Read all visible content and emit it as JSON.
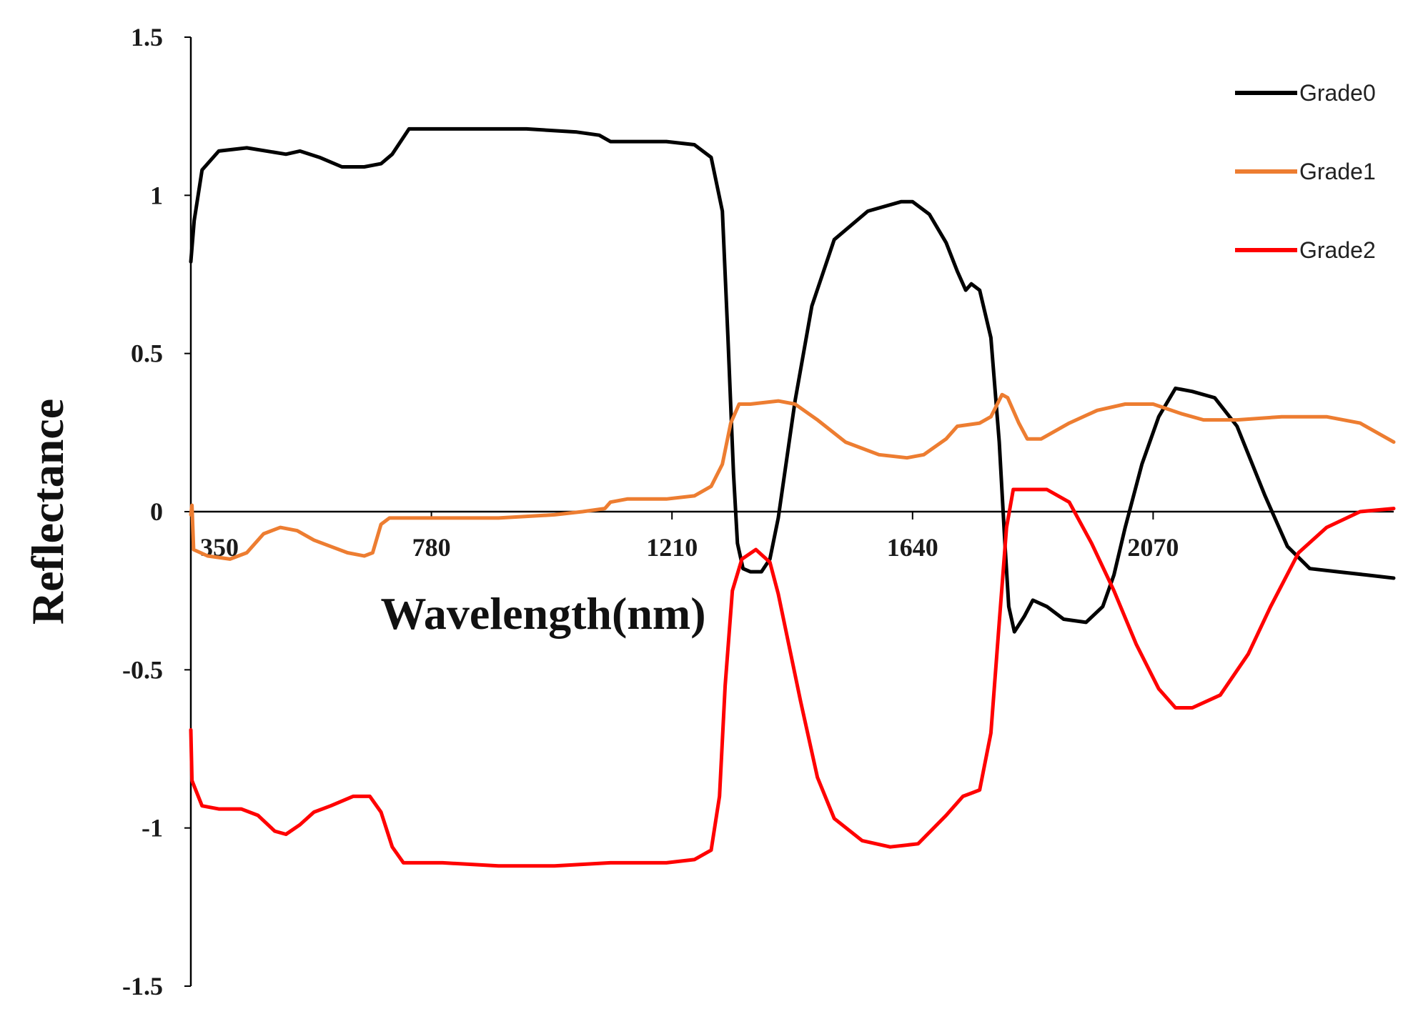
{
  "chart_data": {
    "type": "line",
    "xlabel": "Wavelength(nm)",
    "ylabel": "Reflectance",
    "xlim": [
      350,
      2500
    ],
    "ylim": [
      -1.5,
      1.5
    ],
    "xticks": [
      "350",
      "780",
      "1210",
      "1640",
      "2070"
    ],
    "xtick_values": [
      350,
      780,
      1210,
      1640,
      2070
    ],
    "yticks": [
      "1.5",
      "1",
      "0.5",
      "0",
      "-0.5",
      "-1",
      "-1.5"
    ],
    "ytick_values": [
      1.5,
      1,
      0.5,
      0,
      -0.5,
      -1,
      -1.5
    ],
    "legend_position": "top-right",
    "grid": false,
    "series": [
      {
        "name": "Grade0",
        "color": "#000000",
        "points": [
          [
            350,
            0.79
          ],
          [
            356,
            0.92
          ],
          [
            370,
            1.08
          ],
          [
            400,
            1.14
          ],
          [
            450,
            1.15
          ],
          [
            520,
            1.13
          ],
          [
            545,
            1.14
          ],
          [
            580,
            1.12
          ],
          [
            620,
            1.09
          ],
          [
            660,
            1.09
          ],
          [
            690,
            1.1
          ],
          [
            710,
            1.13
          ],
          [
            740,
            1.21
          ],
          [
            780,
            1.21
          ],
          [
            850,
            1.21
          ],
          [
            950,
            1.21
          ],
          [
            1040,
            1.2
          ],
          [
            1080,
            1.19
          ],
          [
            1100,
            1.17
          ],
          [
            1200,
            1.17
          ],
          [
            1250,
            1.16
          ],
          [
            1280,
            1.12
          ],
          [
            1300,
            0.95
          ],
          [
            1310,
            0.55
          ],
          [
            1320,
            0.12
          ],
          [
            1327,
            -0.1
          ],
          [
            1337,
            -0.18
          ],
          [
            1350,
            -0.19
          ],
          [
            1370,
            -0.19
          ],
          [
            1385,
            -0.15
          ],
          [
            1400,
            -0.02
          ],
          [
            1430,
            0.35
          ],
          [
            1460,
            0.65
          ],
          [
            1500,
            0.86
          ],
          [
            1560,
            0.95
          ],
          [
            1620,
            0.98
          ],
          [
            1640,
            0.98
          ],
          [
            1670,
            0.94
          ],
          [
            1700,
            0.85
          ],
          [
            1720,
            0.76
          ],
          [
            1735,
            0.7
          ],
          [
            1745,
            0.72
          ],
          [
            1760,
            0.7
          ],
          [
            1780,
            0.55
          ],
          [
            1795,
            0.22
          ],
          [
            1805,
            -0.1
          ],
          [
            1812,
            -0.3
          ],
          [
            1822,
            -0.38
          ],
          [
            1840,
            -0.33
          ],
          [
            1855,
            -0.28
          ],
          [
            1880,
            -0.3
          ],
          [
            1910,
            -0.34
          ],
          [
            1950,
            -0.35
          ],
          [
            1980,
            -0.3
          ],
          [
            2000,
            -0.2
          ],
          [
            2020,
            -0.05
          ],
          [
            2050,
            0.15
          ],
          [
            2080,
            0.3
          ],
          [
            2110,
            0.39
          ],
          [
            2140,
            0.38
          ],
          [
            2180,
            0.36
          ],
          [
            2220,
            0.27
          ],
          [
            2270,
            0.05
          ],
          [
            2310,
            -0.11
          ],
          [
            2350,
            -0.18
          ],
          [
            2400,
            -0.19
          ],
          [
            2450,
            -0.2
          ],
          [
            2500,
            -0.21
          ]
        ]
      },
      {
        "name": "Grade1",
        "color": "#ED7D31",
        "points": [
          [
            350,
            -0.01
          ],
          [
            352,
            0.02
          ],
          [
            355,
            -0.12
          ],
          [
            380,
            -0.14
          ],
          [
            420,
            -0.15
          ],
          [
            450,
            -0.13
          ],
          [
            480,
            -0.07
          ],
          [
            510,
            -0.05
          ],
          [
            540,
            -0.06
          ],
          [
            570,
            -0.09
          ],
          [
            600,
            -0.11
          ],
          [
            630,
            -0.13
          ],
          [
            660,
            -0.14
          ],
          [
            675,
            -0.13
          ],
          [
            690,
            -0.04
          ],
          [
            705,
            -0.02
          ],
          [
            740,
            -0.02
          ],
          [
            800,
            -0.02
          ],
          [
            900,
            -0.02
          ],
          [
            1000,
            -0.01
          ],
          [
            1050,
            0.0
          ],
          [
            1090,
            0.01
          ],
          [
            1100,
            0.03
          ],
          [
            1130,
            0.04
          ],
          [
            1200,
            0.04
          ],
          [
            1250,
            0.05
          ],
          [
            1280,
            0.08
          ],
          [
            1300,
            0.15
          ],
          [
            1315,
            0.28
          ],
          [
            1330,
            0.34
          ],
          [
            1350,
            0.34
          ],
          [
            1400,
            0.35
          ],
          [
            1430,
            0.34
          ],
          [
            1470,
            0.29
          ],
          [
            1520,
            0.22
          ],
          [
            1580,
            0.18
          ],
          [
            1630,
            0.17
          ],
          [
            1660,
            0.18
          ],
          [
            1700,
            0.23
          ],
          [
            1720,
            0.27
          ],
          [
            1760,
            0.28
          ],
          [
            1780,
            0.3
          ],
          [
            1800,
            0.37
          ],
          [
            1810,
            0.36
          ],
          [
            1830,
            0.28
          ],
          [
            1845,
            0.23
          ],
          [
            1870,
            0.23
          ],
          [
            1920,
            0.28
          ],
          [
            1970,
            0.32
          ],
          [
            2020,
            0.34
          ],
          [
            2070,
            0.34
          ],
          [
            2120,
            0.31
          ],
          [
            2160,
            0.29
          ],
          [
            2220,
            0.29
          ],
          [
            2300,
            0.3
          ],
          [
            2380,
            0.3
          ],
          [
            2440,
            0.28
          ],
          [
            2500,
            0.22
          ]
        ]
      },
      {
        "name": "Grade2",
        "color": "#FF0000",
        "points": [
          [
            350,
            -0.69
          ],
          [
            352,
            -0.85
          ],
          [
            370,
            -0.93
          ],
          [
            400,
            -0.94
          ],
          [
            440,
            -0.94
          ],
          [
            470,
            -0.96
          ],
          [
            500,
            -1.01
          ],
          [
            520,
            -1.02
          ],
          [
            545,
            -0.99
          ],
          [
            570,
            -0.95
          ],
          [
            600,
            -0.93
          ],
          [
            640,
            -0.9
          ],
          [
            670,
            -0.9
          ],
          [
            690,
            -0.95
          ],
          [
            710,
            -1.06
          ],
          [
            730,
            -1.11
          ],
          [
            800,
            -1.11
          ],
          [
            900,
            -1.12
          ],
          [
            1000,
            -1.12
          ],
          [
            1100,
            -1.11
          ],
          [
            1200,
            -1.11
          ],
          [
            1250,
            -1.1
          ],
          [
            1280,
            -1.07
          ],
          [
            1295,
            -0.9
          ],
          [
            1305,
            -0.55
          ],
          [
            1318,
            -0.25
          ],
          [
            1335,
            -0.15
          ],
          [
            1360,
            -0.12
          ],
          [
            1385,
            -0.16
          ],
          [
            1400,
            -0.26
          ],
          [
            1440,
            -0.6
          ],
          [
            1470,
            -0.84
          ],
          [
            1500,
            -0.97
          ],
          [
            1550,
            -1.04
          ],
          [
            1600,
            -1.06
          ],
          [
            1650,
            -1.05
          ],
          [
            1700,
            -0.96
          ],
          [
            1730,
            -0.9
          ],
          [
            1745,
            -0.89
          ],
          [
            1760,
            -0.88
          ],
          [
            1780,
            -0.7
          ],
          [
            1795,
            -0.35
          ],
          [
            1808,
            -0.05
          ],
          [
            1820,
            0.07
          ],
          [
            1840,
            0.07
          ],
          [
            1880,
            0.07
          ],
          [
            1920,
            0.03
          ],
          [
            1960,
            -0.1
          ],
          [
            2000,
            -0.25
          ],
          [
            2040,
            -0.42
          ],
          [
            2080,
            -0.56
          ],
          [
            2110,
            -0.62
          ],
          [
            2140,
            -0.62
          ],
          [
            2190,
            -0.58
          ],
          [
            2240,
            -0.45
          ],
          [
            2280,
            -0.3
          ],
          [
            2330,
            -0.13
          ],
          [
            2380,
            -0.05
          ],
          [
            2440,
            0.0
          ],
          [
            2500,
            0.01
          ]
        ]
      }
    ]
  }
}
